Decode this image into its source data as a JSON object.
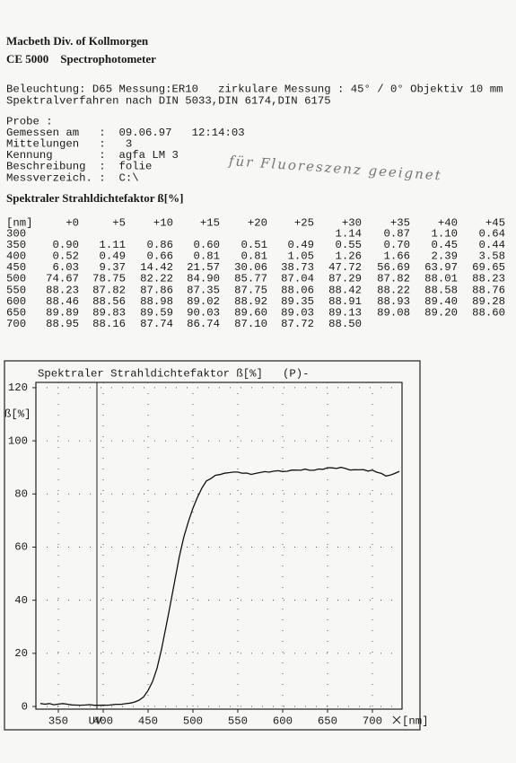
{
  "header": {
    "company": "Macbeth Div. of Kollmorgen",
    "model": "CE 5000    Spectrophotometer"
  },
  "settings": [
    "Beleuchtung: D65 Messung:ER10   zirkulare Messung : 45° / 0° Objektiv 10 mm",
    "Spektralverfahren nach DIN 5033,DIN 6174,DIN 6175"
  ],
  "probe": [
    "Probe :",
    "Gemessen am   :  09.06.97   12:14:03",
    "Mittelungen   :   3",
    "Kennung       :  agfa LM 3",
    "Beschreibung  :  folie",
    "Messverzeich. :  C:\\"
  ],
  "note": "für Fluoreszenz geeignet",
  "table": {
    "title": "Spektraler Strahldichtefaktor ß[%]",
    "header": [
      "[nm]",
      "+0",
      "+5",
      "+10",
      "+15",
      "+20",
      "+25",
      "+30",
      "+35",
      "+40",
      "+45"
    ],
    "rows": [
      [
        "300",
        null,
        null,
        null,
        null,
        null,
        null,
        "1.14",
        "0.87",
        "1.10",
        "0.64"
      ],
      [
        "350",
        "0.90",
        "1.11",
        "0.86",
        "0.60",
        "0.51",
        "0.49",
        "0.55",
        "0.70",
        "0.45",
        "0.44"
      ],
      [
        "400",
        "0.52",
        "0.49",
        "0.66",
        "0.81",
        "0.81",
        "1.05",
        "1.26",
        "1.66",
        "2.39",
        "3.58"
      ],
      [
        "450",
        "6.03",
        "9.37",
        "14.42",
        "21.57",
        "30.06",
        "38.73",
        "47.72",
        "56.69",
        "63.97",
        "69.65"
      ],
      [
        "500",
        "74.67",
        "78.75",
        "82.22",
        "84.90",
        "85.77",
        "87.04",
        "87.29",
        "87.82",
        "88.01",
        "88.23"
      ],
      [
        "550",
        "88.23",
        "87.82",
        "87.86",
        "87.35",
        "87.75",
        "88.06",
        "88.42",
        "88.22",
        "88.58",
        "88.76"
      ],
      [
        "600",
        "88.46",
        "88.56",
        "88.98",
        "89.02",
        "88.92",
        "89.35",
        "88.91",
        "88.93",
        "89.40",
        "89.28"
      ],
      [
        "650",
        "89.89",
        "89.83",
        "89.59",
        "90.03",
        "89.60",
        "89.03",
        "89.13",
        "89.08",
        "89.20",
        "88.60"
      ],
      [
        "700",
        "88.95",
        "88.16",
        "87.74",
        "86.74",
        "87.10",
        "87.72",
        "88.50",
        null,
        null,
        null
      ]
    ]
  },
  "chart_data": {
    "type": "line",
    "title": "Spektraler Strahldichtefaktor ß[%]   (P)-",
    "y_label": "ß[%]",
    "x_label": "[nm]",
    "annotations": [
      {
        "x": 375,
        "text": "UV"
      }
    ],
    "x": [
      330,
      335,
      340,
      345,
      350,
      355,
      360,
      365,
      370,
      375,
      380,
      385,
      390,
      395,
      400,
      405,
      410,
      415,
      420,
      425,
      430,
      435,
      440,
      445,
      450,
      455,
      460,
      465,
      470,
      475,
      480,
      485,
      490,
      495,
      500,
      505,
      510,
      515,
      520,
      525,
      530,
      535,
      540,
      545,
      550,
      555,
      560,
      565,
      570,
      575,
      580,
      585,
      590,
      595,
      600,
      605,
      610,
      615,
      620,
      625,
      630,
      635,
      640,
      645,
      650,
      655,
      660,
      665,
      670,
      675,
      680,
      685,
      690,
      695,
      700,
      705,
      710,
      715,
      720,
      725,
      730
    ],
    "series": [
      {
        "name": "ß",
        "color": "#111111",
        "values": [
          1.14,
          0.87,
          1.1,
          0.64,
          0.9,
          1.11,
          0.86,
          0.6,
          0.51,
          0.49,
          0.55,
          0.7,
          0.45,
          0.44,
          0.52,
          0.49,
          0.66,
          0.81,
          0.81,
          1.05,
          1.26,
          1.66,
          2.39,
          3.58,
          6.03,
          9.37,
          14.42,
          21.57,
          30.06,
          38.73,
          47.72,
          56.69,
          63.97,
          69.65,
          74.67,
          78.75,
          82.22,
          84.9,
          85.77,
          87.04,
          87.29,
          87.82,
          88.01,
          88.23,
          88.23,
          87.82,
          87.86,
          87.35,
          87.75,
          88.06,
          88.42,
          88.22,
          88.58,
          88.76,
          88.46,
          88.56,
          88.98,
          89.02,
          88.92,
          89.35,
          88.91,
          88.93,
          89.4,
          89.28,
          89.89,
          89.83,
          89.59,
          90.03,
          89.6,
          89.03,
          89.13,
          89.08,
          89.2,
          88.6,
          88.95,
          88.16,
          87.74,
          86.74,
          87.1,
          87.72,
          88.5
        ]
      }
    ],
    "xlim": [
      325,
      733
    ],
    "xticks": [
      350,
      400,
      450,
      500,
      550,
      600,
      650,
      700
    ],
    "ylim": [
      -1,
      122
    ],
    "yticks": [
      0,
      20,
      40,
      60,
      80,
      100,
      120
    ],
    "grid": true
  }
}
